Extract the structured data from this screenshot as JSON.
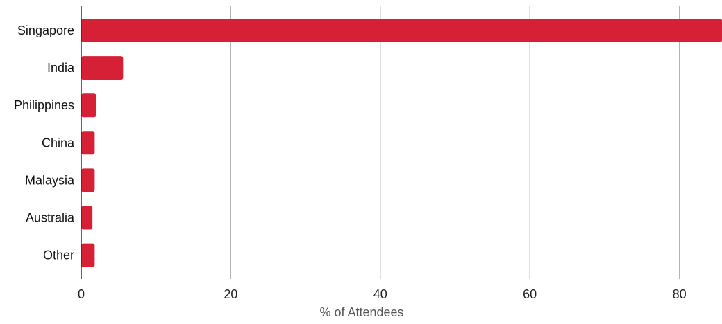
{
  "chart_data": {
    "type": "bar",
    "orientation": "horizontal",
    "categories": [
      "Singapore",
      "India",
      "Philippines",
      "China",
      "Malaysia",
      "Australia",
      "Other"
    ],
    "values": [
      85.7,
      5.6,
      2.0,
      1.8,
      1.8,
      1.5,
      1.8
    ],
    "title": "",
    "xlabel": "% of Attendees",
    "ylabel": "",
    "xlim": [
      0,
      86
    ],
    "xticks": [
      "0",
      "20",
      "40",
      "60",
      "80"
    ],
    "xtick_values": [
      0,
      20,
      40,
      60,
      80
    ],
    "grid": "vertical",
    "legend": "none",
    "bar_color": "#d62036",
    "grid_color": "#b3b3b3",
    "axis_color": "#333333"
  }
}
